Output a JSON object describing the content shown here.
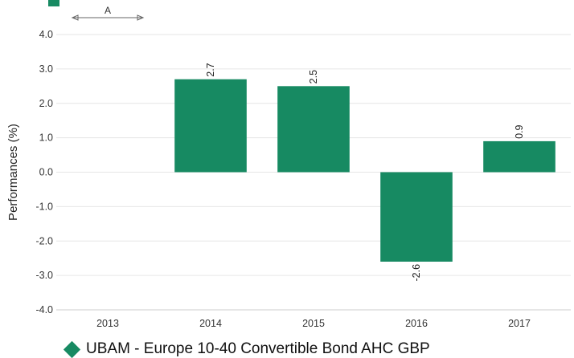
{
  "chart_data": {
    "type": "bar",
    "categories": [
      "2013",
      "2014",
      "2015",
      "2016",
      "2017"
    ],
    "series": [
      {
        "name": "UBAM - Europe 10-40 Convertible Bond AHC GBP",
        "values": [
          null,
          2.7,
          2.5,
          -2.6,
          0.9
        ],
        "labels": [
          "",
          "2.7",
          "2.5",
          "-2.6",
          "0.9"
        ],
        "color": "#178a62"
      }
    ],
    "ylabel": "Performances (%)",
    "ylim": [
      -4.0,
      4.0
    ],
    "yticks": [
      "4.0",
      "3.0",
      "2.0",
      "1.0",
      "0.0",
      "-1.0",
      "-2.0",
      "-3.0",
      "-4.0"
    ],
    "grid": true,
    "legend_position": "bottom-left",
    "annotation": {
      "text": "A",
      "span": [
        "2013"
      ]
    }
  },
  "colors": {
    "bar": "#178a62",
    "grid": "#e6e6e6",
    "axis": "#cccccc",
    "text": "#333333"
  },
  "legend": {
    "label": "UBAM - Europe 10-40 Convertible Bond AHC GBP"
  }
}
